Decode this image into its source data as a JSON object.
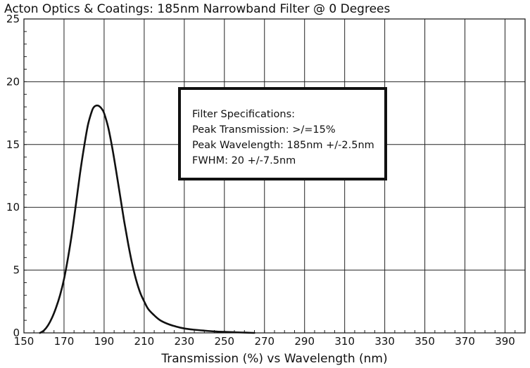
{
  "chart_data": {
    "type": "line",
    "title": "Acton Optics & Coatings: 185nm Narrowband Filter @ 0 Degrees",
    "xlabel": "Transmission (%) vs Wavelength (nm)",
    "ylabel": "",
    "xlim": [
      150,
      400
    ],
    "ylim": [
      0,
      25
    ],
    "x_ticks": [
      150,
      170,
      190,
      210,
      230,
      250,
      270,
      290,
      310,
      330,
      350,
      370,
      390
    ],
    "y_ticks": [
      0,
      5,
      10,
      15,
      20,
      25
    ],
    "grid": true,
    "series": [
      {
        "color": "#111111",
        "x": [
          158,
          160,
          162,
          164,
          166,
          168,
          170,
          172,
          174,
          176,
          178,
          180,
          182,
          184,
          185,
          186,
          187,
          188,
          189,
          190,
          192,
          194,
          196,
          198,
          200,
          202,
          204,
          206,
          208,
          210,
          212,
          215,
          218,
          222,
          226,
          230,
          235,
          240,
          245,
          250,
          255,
          260,
          265
        ],
        "y": [
          0.0,
          0.2,
          0.6,
          1.2,
          2.0,
          3.0,
          4.3,
          6.0,
          8.0,
          10.3,
          12.7,
          14.8,
          16.6,
          17.7,
          18.0,
          18.1,
          18.1,
          18.0,
          17.8,
          17.5,
          16.4,
          14.8,
          12.9,
          10.9,
          8.9,
          7.1,
          5.5,
          4.2,
          3.2,
          2.5,
          1.9,
          1.4,
          1.0,
          0.7,
          0.5,
          0.35,
          0.25,
          0.18,
          0.12,
          0.08,
          0.05,
          0.02,
          0.0
        ]
      }
    ],
    "annotation": {
      "title": "Filter Specifications:",
      "lines": [
        "Peak Transmission: >/=15%",
        "Peak Wavelength: 185nm +/-2.5nm",
        "FWHM: 20 +/-7.5nm"
      ],
      "placement": "top-center"
    }
  }
}
